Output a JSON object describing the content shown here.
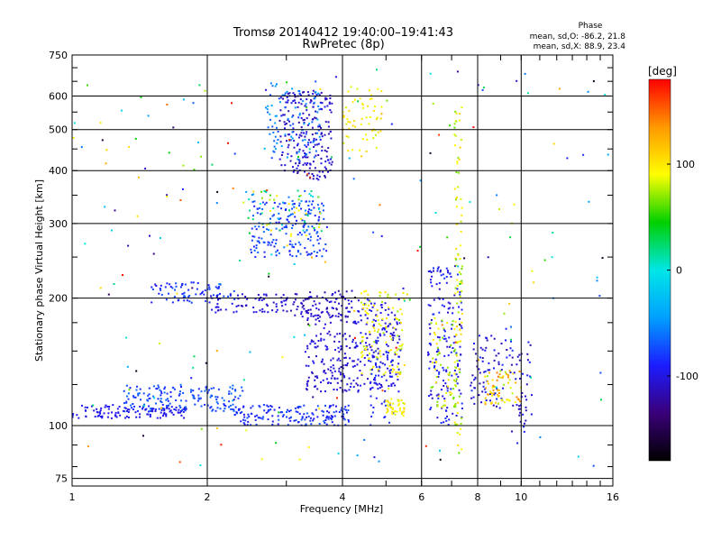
{
  "chart_data": {
    "type": "scatter",
    "title_line1": "Tromsø 20140412 19:40:00–19:41:43",
    "title_line2": "RwPretec (8p)",
    "xlabel": "Frequency [MHz]",
    "ylabel": "Stationary phase Virtual Height [km]",
    "x_scale": "log",
    "y_scale": "log",
    "xlim": [
      1,
      16
    ],
    "ylim": [
      72,
      750
    ],
    "x_ticks": [
      1,
      2,
      4,
      6,
      8,
      10,
      16
    ],
    "y_ticks": [
      75,
      100,
      200,
      300,
      400,
      500,
      600,
      750
    ],
    "grid": true,
    "stats": {
      "heading": "Phase",
      "o_line": "mean, sd,O: -86.2, 21.8",
      "x_line": "mean, sd,X: 88.9, 23.4"
    },
    "colorbar": {
      "label": "[deg]",
      "range": [
        -180,
        180
      ],
      "ticks": [
        -100,
        0,
        100
      ],
      "colors": [
        "#000000",
        "#3a007a",
        "#1c1cff",
        "#00a0ff",
        "#00e6e6",
        "#00d000",
        "#ffff00",
        "#ff9900",
        "#ff0000"
      ]
    },
    "series": [
      {
        "clusters": [
          {
            "x": [
              1.0,
              1.8
            ],
            "y": [
              104,
              112
            ],
            "phase": [
              -95,
              -100
            ],
            "n": 120
          },
          {
            "x": [
              1.3,
              2.4
            ],
            "y": [
              108,
              125
            ],
            "phase": [
              -90,
              -60
            ],
            "n": 160
          },
          {
            "x": [
              2.3,
              4.2
            ],
            "y": [
              100,
              112
            ],
            "phase": [
              -100,
              -70
            ],
            "n": 160
          },
          {
            "x": [
              1.5,
              2.3
            ],
            "y": [
              195,
              218
            ],
            "phase": [
              -95,
              -70
            ],
            "n": 70
          },
          {
            "x": [
              2.0,
              3.0
            ],
            "y": [
              185,
              205
            ],
            "phase": [
              -110,
              -95
            ],
            "n": 70
          },
          {
            "x": [
              2.5,
              3.7
            ],
            "y": [
              250,
              340
            ],
            "phase": [
              -95,
              -60
            ],
            "n": 180
          },
          {
            "x": [
              2.4,
              3.6
            ],
            "y": [
              280,
              360
            ],
            "phase": [
              -70,
              110
            ],
            "n": 70
          },
          {
            "x": [
              2.9,
              3.8
            ],
            "y": [
              380,
              620
            ],
            "phase": [
              -120,
              -95
            ],
            "n": 220
          },
          {
            "x": [
              2.7,
              3.6
            ],
            "y": [
              420,
              650
            ],
            "phase": [
              -80,
              -40
            ],
            "n": 90
          },
          {
            "x": [
              3.3,
              4.3
            ],
            "y": [
              120,
              190
            ],
            "phase": [
              -115,
              -95
            ],
            "n": 180
          },
          {
            "x": [
              3.0,
              4.2
            ],
            "y": [
              180,
              210
            ],
            "phase": [
              -120,
              -100
            ],
            "n": 80
          },
          {
            "x": [
              4.3,
              5.4
            ],
            "y": [
              120,
              200
            ],
            "phase": [
              -110,
              -90
            ],
            "n": 140
          },
          {
            "x": [
              4.4,
              5.5
            ],
            "y": [
              130,
              210
            ],
            "phase": [
              70,
              110
            ],
            "n": 120
          },
          {
            "x": [
              4.0,
              4.9
            ],
            "y": [
              440,
              640
            ],
            "phase": [
              80,
              110
            ],
            "n": 60
          },
          {
            "x": [
              4.6,
              5.2
            ],
            "y": [
              100,
              180
            ],
            "phase": [
              -100,
              -80
            ],
            "n": 60
          },
          {
            "x": [
              5.0,
              5.5
            ],
            "y": [
              105,
              115
            ],
            "phase": [
              80,
              110
            ],
            "n": 40
          },
          {
            "x": [
              6.2,
              7.4
            ],
            "y": [
              100,
              240
            ],
            "phase": [
              -110,
              -80
            ],
            "n": 160
          },
          {
            "x": [
              6.3,
              7.2
            ],
            "y": [
              110,
              180
            ],
            "phase": [
              60,
              110
            ],
            "n": 70
          },
          {
            "x": [
              7.1,
              7.4
            ],
            "y": [
              85,
              600
            ],
            "phase": [
              60,
              110
            ],
            "n": 90
          },
          {
            "x": [
              7.7,
              9.6
            ],
            "y": [
              110,
              170
            ],
            "phase": [
              -120,
              -80
            ],
            "n": 80
          },
          {
            "x": [
              8.3,
              10.0
            ],
            "y": [
              112,
              135
            ],
            "phase": [
              70,
              150
            ],
            "n": 70
          },
          {
            "x": [
              9.5,
              10.6
            ],
            "y": [
              95,
              160
            ],
            "phase": [
              -120,
              -90
            ],
            "n": 40
          },
          {
            "x": [
              1.0,
              16.0
            ],
            "y": [
              80,
              700
            ],
            "phase": [
              -180,
              180
            ],
            "n": 220
          }
        ]
      }
    ]
  }
}
